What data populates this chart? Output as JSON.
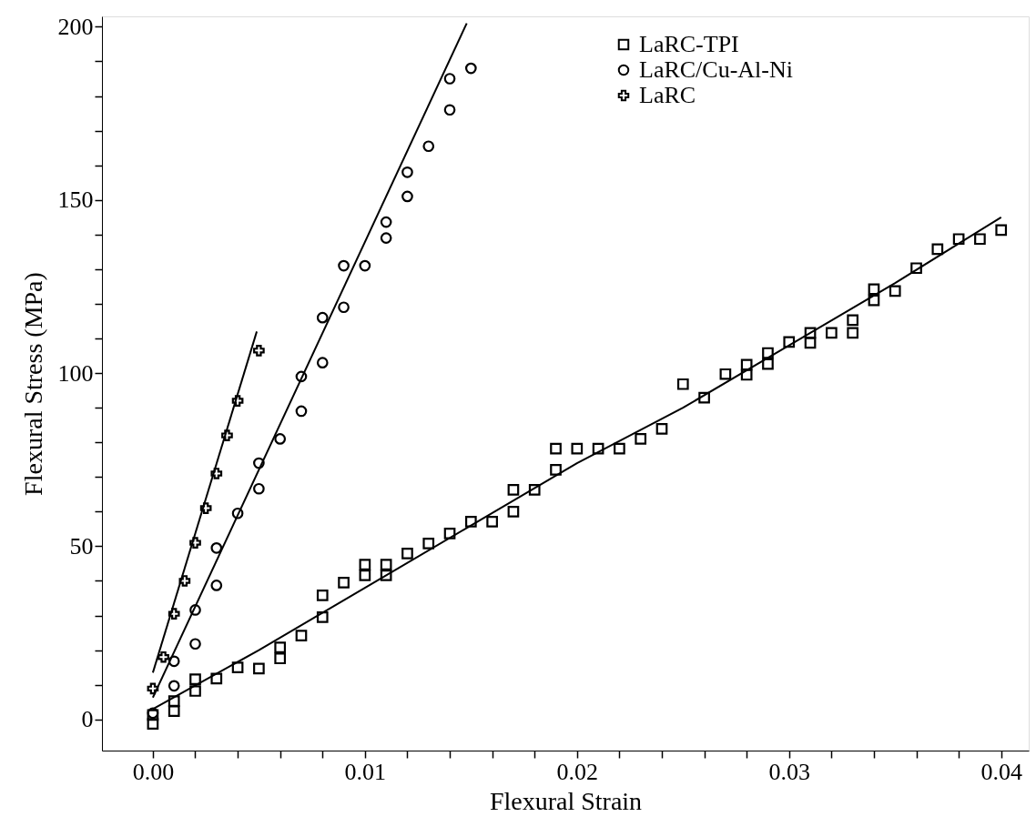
{
  "chart_data": {
    "type": "scatter",
    "xlabel": "Flexural Strain",
    "ylabel": "Flexural Stress (MPa)",
    "xlim": [
      -0.0024,
      0.0413
    ],
    "ylim": [
      -9,
      203
    ],
    "xticks": [
      {
        "value": 0,
        "label": "0.00"
      },
      {
        "value": 0.002,
        "label": null
      },
      {
        "value": 0.004,
        "label": null
      },
      {
        "value": 0.006,
        "label": null
      },
      {
        "value": 0.008,
        "label": null
      },
      {
        "value": 0.01,
        "label": "0.01"
      },
      {
        "value": 0.012,
        "label": null
      },
      {
        "value": 0.014,
        "label": null
      },
      {
        "value": 0.016,
        "label": null
      },
      {
        "value": 0.018,
        "label": null
      },
      {
        "value": 0.02,
        "label": "0.02"
      },
      {
        "value": 0.022,
        "label": null
      },
      {
        "value": 0.024,
        "label": null
      },
      {
        "value": 0.026,
        "label": null
      },
      {
        "value": 0.028,
        "label": null
      },
      {
        "value": 0.03,
        "label": "0.03"
      },
      {
        "value": 0.032,
        "label": null
      },
      {
        "value": 0.034,
        "label": null
      },
      {
        "value": 0.036,
        "label": null
      },
      {
        "value": 0.038,
        "label": null
      },
      {
        "value": 0.04,
        "label": "0.04"
      }
    ],
    "yticks": [
      0,
      {
        "value": 10,
        "label": null
      },
      {
        "value": 20,
        "label": null
      },
      {
        "value": 30,
        "label": null
      },
      {
        "value": 40,
        "label": null
      },
      50,
      {
        "value": 60,
        "label": null
      },
      {
        "value": 70,
        "label": null
      },
      {
        "value": 80,
        "label": null
      },
      {
        "value": 90,
        "label": null
      },
      100,
      {
        "value": 110,
        "label": null
      },
      {
        "value": 120,
        "label": null
      },
      {
        "value": 130,
        "label": null
      },
      {
        "value": 140,
        "label": null
      },
      150,
      {
        "value": 160,
        "label": null
      },
      {
        "value": 170,
        "label": null
      },
      {
        "value": 180,
        "label": null
      },
      {
        "value": 190,
        "label": null
      },
      200
    ],
    "grid": false,
    "legend": "top right",
    "series": [
      {
        "name": "LaRC-TPI",
        "marker": "square",
        "color": "#000000",
        "x": [
          0,
          0,
          0.001,
          0.001,
          0.002,
          0.002,
          0.003,
          0.004,
          0.005,
          0.006,
          0.006,
          0.007,
          0.008,
          0.008,
          0.009,
          0.01,
          0.01,
          0.011,
          0.011,
          0.012,
          0.013,
          0.014,
          0.015,
          0.016,
          0.017,
          0.017,
          0.018,
          0.019,
          0.019,
          0.02,
          0.021,
          0.022,
          0.023,
          0.024,
          0.025,
          0.026,
          0.027,
          0.028,
          0.028,
          0.029,
          0.029,
          0.03,
          0.031,
          0.031,
          0.032,
          0.033,
          0.033,
          0.034,
          0.034,
          0.035,
          0.036,
          0.037,
          0.038,
          0.039,
          0.04
        ],
        "values": [
          -1.3,
          1.3,
          2.4,
          5.3,
          8.2,
          11.6,
          11.8,
          15,
          14.7,
          17.6,
          20.8,
          24.2,
          29.5,
          35.8,
          39.5,
          41.6,
          44.7,
          41.6,
          44.7,
          47.9,
          50.8,
          53.7,
          57.1,
          57.1,
          60,
          66.3,
          66.3,
          72.1,
          78.2,
          78.2,
          78.2,
          78.2,
          81,
          83.9,
          96.8,
          92.9,
          99.7,
          99.5,
          102.4,
          102.6,
          105.8,
          109,
          108.7,
          111.6,
          111.6,
          111.6,
          115.3,
          121,
          124.2,
          123.7,
          130.3,
          135.8,
          138.7,
          138.7,
          141.3
        ]
      },
      {
        "name": "LaRC/Cu-Al-Ni",
        "marker": "circle",
        "color": "#000000",
        "x": [
          0,
          0.001,
          0.001,
          0.002,
          0.002,
          0.003,
          0.003,
          0.004,
          0.005,
          0.005,
          0.006,
          0.007,
          0.007,
          0.008,
          0.008,
          0.009,
          0.009,
          0.01,
          0.011,
          0.011,
          0.012,
          0.012,
          0.013,
          0.014,
          0.014,
          0.015
        ],
        "values": [
          1.8,
          9.7,
          16.8,
          21.8,
          31.6,
          38.7,
          49.5,
          59.5,
          66.6,
          74,
          81,
          89,
          99,
          103,
          116,
          119,
          131,
          131,
          139,
          143.6,
          151,
          158,
          165.5,
          176,
          185,
          188
        ]
      },
      {
        "name": "LaRC",
        "marker": "cross",
        "color": "#000000",
        "x": [
          0,
          0.0005,
          0.001,
          0.0015,
          0.002,
          0.0025,
          0.003,
          0.0035,
          0.004,
          0.005
        ],
        "values": [
          8.9,
          18,
          30.5,
          40,
          51,
          61,
          71,
          82,
          92,
          106.5
        ]
      },
      {
        "type": "line",
        "color": "#000000",
        "x": [
          0,
          0.005,
          0.01,
          0.015,
          0.02,
          0.025,
          0.03,
          0.035,
          0.04
        ],
        "values": [
          3,
          20,
          38,
          56,
          74,
          90,
          108,
          126,
          145
        ]
      },
      {
        "type": "line",
        "color": "#000000",
        "x": [
          0,
          0.0148
        ],
        "values": [
          6.3,
          201
        ]
      },
      {
        "type": "line",
        "color": "#000000",
        "x": [
          0,
          0.0049
        ],
        "values": [
          13.5,
          112
        ]
      }
    ]
  }
}
